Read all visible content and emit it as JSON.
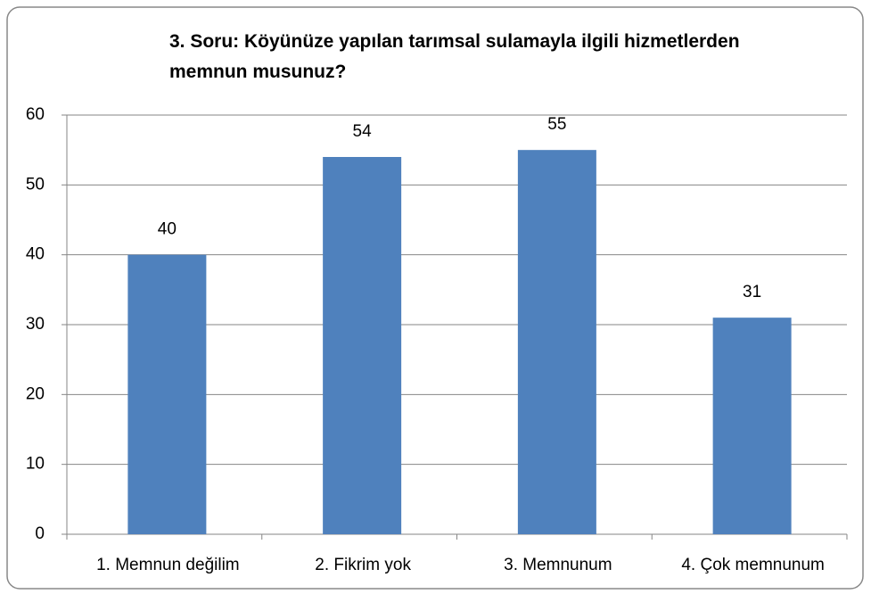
{
  "chart_data": {
    "type": "bar",
    "title": "3. Soru: Köyünüze yapılan tarımsal sulamayla ilgili hizmetlerden memnun musunuz?",
    "categories": [
      "1. Memnun değilim",
      "2. Fikrim yok",
      "3. Memnunum",
      "4. Çok memnunum"
    ],
    "values": [
      40,
      54,
      55,
      31
    ],
    "color": "#4f81bd",
    "ylim": [
      0,
      60
    ],
    "yticks": [
      0,
      10,
      20,
      30,
      40,
      50,
      60
    ],
    "grid": true
  }
}
